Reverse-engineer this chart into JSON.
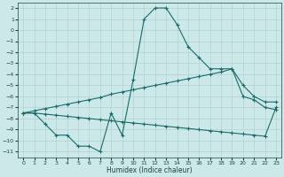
{
  "xlabel": "Humidex (Indice chaleur)",
  "background_color": "#cce8e8",
  "grid_color": "#aacccc",
  "line_color": "#1a6b6b",
  "xlim": [
    -0.5,
    23.5
  ],
  "ylim": [
    -11.5,
    2.5
  ],
  "xticks": [
    0,
    1,
    2,
    3,
    4,
    5,
    6,
    7,
    8,
    9,
    10,
    11,
    12,
    13,
    14,
    15,
    16,
    17,
    18,
    19,
    20,
    21,
    22,
    23
  ],
  "yticks": [
    2,
    1,
    0,
    -1,
    -2,
    -3,
    -4,
    -5,
    -6,
    -7,
    -8,
    -9,
    -10,
    -11
  ],
  "main_x": [
    0,
    1,
    2,
    3,
    4,
    5,
    6,
    7,
    8,
    9,
    10,
    11,
    12,
    13,
    14,
    15,
    16,
    17,
    18,
    19,
    20,
    21,
    22,
    23
  ],
  "main_y": [
    -7.5,
    -7.5,
    -8.5,
    -9.5,
    -9.5,
    -10.5,
    -10.5,
    -11.0,
    -7.5,
    -9.5,
    -4.5,
    1.0,
    2.0,
    2.0,
    0.5,
    -1.5,
    -2.5,
    -3.5,
    -3.5,
    -3.5,
    -5.0,
    -6.0,
    -6.5,
    -6.5
  ],
  "upper_x": [
    0,
    1,
    2,
    3,
    4,
    5,
    6,
    7,
    8,
    9,
    10,
    11,
    12,
    13,
    14,
    15,
    16,
    17,
    18,
    19,
    20,
    21,
    22,
    23
  ],
  "upper_y": [
    -7.5,
    -7.3,
    -7.1,
    -6.9,
    -6.7,
    -6.5,
    -6.3,
    -6.1,
    -5.8,
    -5.6,
    -5.4,
    -5.2,
    -5.0,
    -4.8,
    -4.6,
    -4.4,
    -4.2,
    -4.0,
    -3.8,
    -3.5,
    -6.0,
    -6.3,
    -7.0,
    -7.2
  ],
  "lower_x": [
    0,
    1,
    2,
    3,
    4,
    5,
    6,
    7,
    8,
    9,
    10,
    11,
    12,
    13,
    14,
    15,
    16,
    17,
    18,
    19,
    20,
    21,
    22,
    23
  ],
  "lower_y": [
    -7.5,
    -7.5,
    -7.6,
    -7.7,
    -7.8,
    -7.9,
    -8.0,
    -8.1,
    -8.2,
    -8.3,
    -8.4,
    -8.5,
    -8.6,
    -8.7,
    -8.8,
    -8.9,
    -9.0,
    -9.1,
    -9.2,
    -9.3,
    -9.4,
    -9.5,
    -9.6,
    -7.0
  ],
  "figsize": [
    3.2,
    2.0
  ],
  "dpi": 100
}
